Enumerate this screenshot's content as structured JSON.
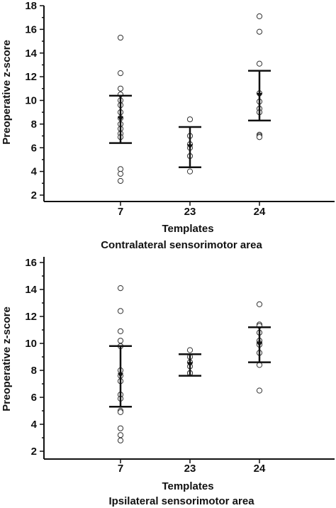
{
  "chart_data": [
    {
      "type": "scatter",
      "ylabel": "Preoperative z-score",
      "xlabel": "Templates",
      "subtitle": "Contralateral sensorimotor area",
      "categories": [
        "7",
        "23",
        "24"
      ],
      "ylim": [
        1.5,
        18
      ],
      "yticks": [
        2,
        4,
        6,
        8,
        10,
        12,
        14,
        16,
        18
      ],
      "points": [
        [
          15.3,
          12.3,
          11.0,
          10.5,
          10.0,
          9.6,
          9.0,
          8.5,
          8.0,
          7.6,
          7.2,
          6.9,
          4.2,
          3.8,
          3.2
        ],
        [
          8.4,
          7.0,
          6.3,
          6.0,
          5.3,
          4.0
        ],
        [
          17.1,
          15.8,
          13.1,
          10.6,
          9.9,
          9.3,
          9.0,
          7.1,
          7.0,
          6.9
        ]
      ],
      "means": [
        8.4,
        6.05,
        10.4
      ],
      "error_low": [
        6.4,
        4.35,
        8.3
      ],
      "error_high": [
        10.4,
        7.75,
        12.5
      ],
      "grid": false
    },
    {
      "type": "scatter",
      "ylabel": "Preoperative z-score",
      "xlabel": "Templates",
      "subtitle": "Ipsilateral sensorimotor area",
      "categories": [
        "7",
        "23",
        "24"
      ],
      "ylim": [
        1.7,
        16.5
      ],
      "yticks": [
        2,
        4,
        6,
        8,
        10,
        12,
        14,
        16
      ],
      "points": [
        [
          14.1,
          12.4,
          10.9,
          10.2,
          9.8,
          8.0,
          7.6,
          7.2,
          6.2,
          5.9,
          5.0,
          4.9,
          3.7,
          3.2,
          2.8
        ],
        [
          9.5,
          9.0,
          8.6,
          8.3,
          7.8,
          7.8
        ],
        [
          12.9,
          11.4,
          11.3,
          10.8,
          10.2,
          10.0,
          9.9,
          9.3,
          8.4,
          6.5
        ]
      ],
      "means": [
        7.6,
        8.4,
        9.9
      ],
      "error_low": [
        5.3,
        7.6,
        8.6
      ],
      "error_high": [
        9.8,
        9.2,
        11.2
      ],
      "grid": false
    }
  ]
}
